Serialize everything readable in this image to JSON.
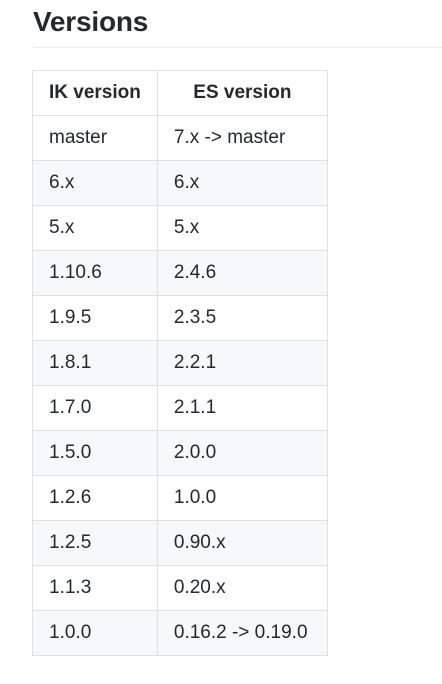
{
  "section": {
    "title": "Versions"
  },
  "table": {
    "headers": [
      "IK version",
      "ES version"
    ],
    "rows": [
      [
        "master",
        "7.x -> master"
      ],
      [
        "6.x",
        "6.x"
      ],
      [
        "5.x",
        "5.x"
      ],
      [
        "1.10.6",
        "2.4.6"
      ],
      [
        "1.9.5",
        "2.3.5"
      ],
      [
        "1.8.1",
        "2.2.1"
      ],
      [
        "1.7.0",
        "2.1.1"
      ],
      [
        "1.5.0",
        "2.0.0"
      ],
      [
        "1.2.6",
        "1.0.0"
      ],
      [
        "1.2.5",
        "0.90.x"
      ],
      [
        "1.1.3",
        "0.20.x"
      ],
      [
        "1.0.0",
        "0.16.2 -> 0.19.0"
      ]
    ]
  }
}
